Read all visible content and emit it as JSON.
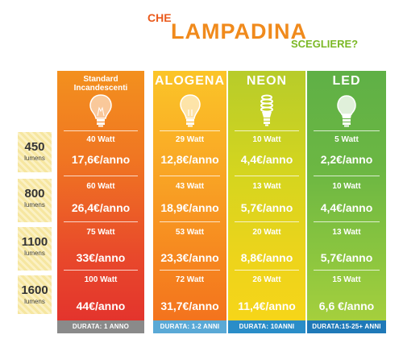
{
  "title": {
    "che": "CHE",
    "main": "LAMPADINA",
    "sub": "SCEGLIERE?"
  },
  "columns": [
    {
      "name": "Standard\nIncandescenti",
      "icon": "bulb-incandescent-icon",
      "watts": [
        "40 Watt",
        "60 Watt",
        "75 Watt",
        "100 Watt"
      ],
      "costs": [
        "17,6€/anno",
        "26,4€/anno",
        "33€/anno",
        "44€/anno"
      ],
      "footer": "DURATA: 1 ANNO"
    },
    {
      "name": "ALOGENA",
      "icon": "bulb-halogen-icon",
      "watts": [
        "29 Watt",
        "43 Watt",
        "53 Watt",
        "72 Watt"
      ],
      "costs": [
        "12,8€/anno",
        "18,9€/anno",
        "23,3€/anno",
        "31,7€/anno"
      ],
      "footer": "DURATA: 1-2 ANNI"
    },
    {
      "name": "NEON",
      "icon": "bulb-neon-spiral-icon",
      "watts": [
        "10 Watt",
        "13 Watt",
        "20 Watt",
        "26 Watt"
      ],
      "costs": [
        "4,4€/anno",
        "5,7€/anno",
        "8,8€/anno",
        "11,4€/anno"
      ],
      "footer": "DURATA: 10ANNI"
    },
    {
      "name": "LED",
      "icon": "bulb-led-icon",
      "watts": [
        "5 Watt",
        "10 Watt",
        "13 Watt",
        "15 Watt"
      ],
      "costs": [
        "2,2€/anno",
        "4,4€/anno",
        "5,7€/anno",
        "6,6 €/anno"
      ],
      "footer": "DURATA:15-25+ ANNI"
    }
  ],
  "lumens": [
    {
      "value": "450",
      "unit": "lumens"
    },
    {
      "value": "800",
      "unit": "lumens"
    },
    {
      "value": "1100",
      "unit": "lumens"
    },
    {
      "value": "1600",
      "unit": "lumens"
    }
  ],
  "colors": {
    "title_che": "#ea5a1c",
    "title_main": "#f08a1c",
    "title_sub": "#7bb825",
    "standard": "#e8482b",
    "alogena": "#f9a625",
    "neon": "#d4d51f",
    "led": "#6cb743"
  }
}
